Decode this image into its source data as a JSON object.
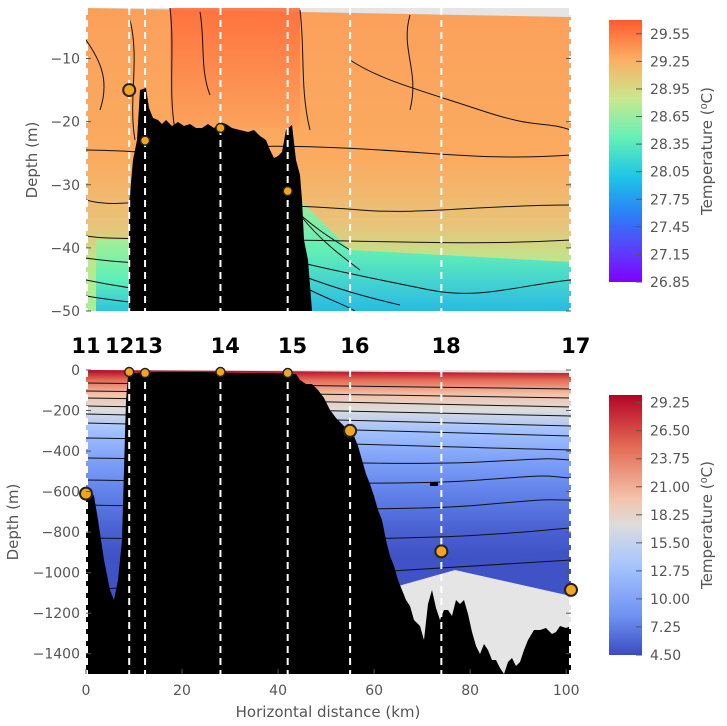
{
  "chart_data": [
    {
      "type": "heatmap",
      "title": "",
      "xlabel": "",
      "ylabel": "Depth (m)",
      "xlim": [
        0,
        101
      ],
      "ylim": [
        -50,
        -2
      ],
      "yticks": [
        -10,
        -20,
        -30,
        -40,
        -50
      ],
      "colormap": "rainbow",
      "colorbar": {
        "label": "Temperature (⁰C)",
        "ticks": [
          "29.55",
          "29.25",
          "28.95",
          "28.65",
          "28.35",
          "28.05",
          "27.75",
          "27.45",
          "27.15",
          "26.85"
        ],
        "range": [
          26.85,
          29.7
        ]
      },
      "stations_x": [
        9,
        12.3,
        28,
        42,
        55,
        74
      ],
      "markers": [
        {
          "x": 9,
          "depth": -15,
          "size": "large"
        },
        {
          "x": 12.3,
          "depth": -23,
          "size": "small"
        },
        {
          "x": 28,
          "depth": -21,
          "size": "small"
        },
        {
          "x": 42,
          "depth": -31,
          "size": "small"
        }
      ]
    },
    {
      "type": "heatmap",
      "title": "",
      "xlabel": "Horizontal distance (km)",
      "ylabel": "Depth (m)",
      "xlim": [
        0,
        101
      ],
      "ylim": [
        -1500,
        0
      ],
      "xticks": [
        0,
        20,
        40,
        60,
        80,
        100
      ],
      "yticks": [
        0,
        -200,
        -400,
        -600,
        -800,
        -1000,
        -1200,
        -1400
      ],
      "colormap": "coolwarm",
      "colorbar": {
        "label": "Temperature (⁰C)",
        "ticks": [
          "29.25",
          "26.50",
          "23.75",
          "21.00",
          "18.25",
          "15.50",
          "12.75",
          "10.00",
          "7.25",
          "4.50"
        ],
        "range": [
          4.5,
          30
        ]
      },
      "stations_x": [
        9,
        12.3,
        28,
        42,
        55,
        74
      ],
      "markers": [
        {
          "x": 0,
          "depth": -610,
          "size": "large"
        },
        {
          "x": 9,
          "depth": -10,
          "size": "small"
        },
        {
          "x": 12.3,
          "depth": -15,
          "size": "small"
        },
        {
          "x": 28,
          "depth": -10,
          "size": "small"
        },
        {
          "x": 42,
          "depth": -15,
          "size": "small"
        },
        {
          "x": 55,
          "depth": -300,
          "size": "large"
        },
        {
          "x": 74,
          "depth": -895,
          "size": "large"
        },
        {
          "x": 101,
          "depth": -1085,
          "size": "large"
        }
      ]
    }
  ],
  "stations": [
    {
      "label": "11",
      "x": 0
    },
    {
      "label": "12",
      "x": 7
    },
    {
      "label": "13",
      "x": 13
    },
    {
      "label": "14",
      "x": 29
    },
    {
      "label": "15",
      "x": 43
    },
    {
      "label": "16",
      "x": 56
    },
    {
      "label": "18",
      "x": 75
    },
    {
      "label": "17",
      "x": 102
    }
  ],
  "colors": {
    "bathymetry": "#000000",
    "marker_fill": "#f5a51d",
    "marker_edge": "#222222",
    "station_line": "#ffffff",
    "no_data": "#e5e5e5"
  }
}
